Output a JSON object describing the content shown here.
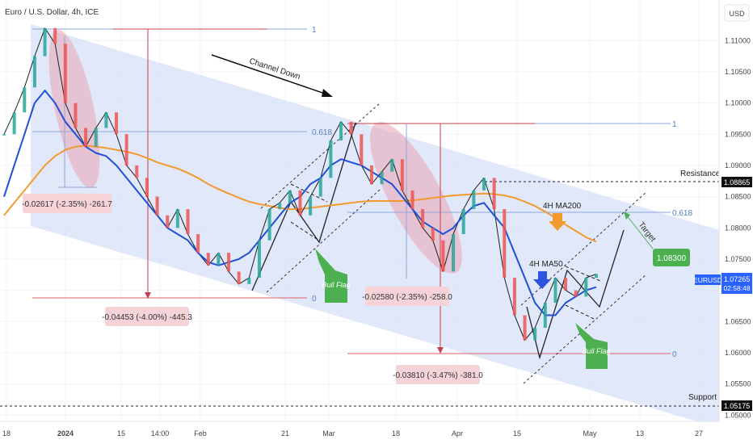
{
  "chart_data": {
    "type": "line",
    "title": "Euro / U.S. Dollar, 4h, ICE",
    "currency": "USD",
    "symbol": "EURUSD",
    "last_price": "1.07265",
    "countdown": "02:58:48",
    "ylim": [
      1.049,
      1.1165
    ],
    "y_ticks": [
      "1.11000",
      "1.10500",
      "1.10000",
      "1.09500",
      "1.09000",
      "1.08500",
      "1.08000",
      "1.07500",
      "1.07000",
      "1.06500",
      "1.06000",
      "1.05500",
      "1.05000"
    ],
    "x_ticks": [
      "18",
      "2024",
      "15",
      "14:00",
      "Feb",
      "21",
      "Mar",
      "18",
      "Apr",
      "15",
      "May",
      "13",
      "27"
    ],
    "series": [
      {
        "values": [
          1.095,
          1.0985,
          1.1025,
          1.1075,
          1.112,
          1.1095,
          1.1,
          1.096,
          1.093,
          1.096,
          1.0985,
          1.095,
          1.09,
          1.088,
          1.085,
          1.082,
          1.08,
          1.083,
          1.079,
          1.076,
          1.074,
          1.076,
          1.073,
          1.071,
          1.072,
          1.078,
          1.083,
          1.084,
          1.086,
          1.082,
          1.085,
          1.088,
          1.094,
          1.097,
          1.095,
          1.09,
          1.087,
          1.089,
          1.091,
          1.086,
          1.083,
          1.08,
          1.078,
          1.073,
          1.079,
          1.083,
          1.086,
          1.088,
          1.083,
          1.072,
          1.066,
          1.062,
          1.064,
          1.068,
          1.072,
          1.07,
          1.069,
          1.072,
          1.0726
        ]
      },
      {
        "name": "4H MA50",
        "values": [
          1.085,
          1.09,
          1.095,
          1.1,
          1.102,
          1.1,
          1.097,
          1.095,
          1.093,
          1.092,
          1.0915,
          1.09,
          1.088,
          1.086,
          1.084,
          1.082,
          1.08,
          1.079,
          1.078,
          1.076,
          1.0745,
          1.074,
          1.0745,
          1.075,
          1.076,
          1.078,
          1.08,
          1.082,
          1.084,
          1.085,
          1.087,
          1.088,
          1.09,
          1.091,
          1.0905,
          1.09,
          1.089,
          1.088,
          1.087,
          1.085,
          1.083,
          1.081,
          1.08,
          1.079,
          1.08,
          1.082,
          1.0835,
          1.084,
          1.082,
          1.08,
          1.076,
          1.072,
          1.068,
          1.066,
          1.066,
          1.068,
          1.069,
          1.07,
          1.0705
        ]
      },
      {
        "name": "4H MA200",
        "values": [
          1.082,
          1.084,
          1.086,
          1.088,
          1.09,
          1.0915,
          1.0925,
          1.093,
          1.0932,
          1.093,
          1.0928,
          1.0925,
          1.0922,
          1.0918,
          1.0912,
          1.0905,
          1.09,
          1.0895,
          1.0888,
          1.088,
          1.087,
          1.0862,
          1.0855,
          1.0848,
          1.0842,
          1.0838,
          1.0835,
          1.0832,
          1.083,
          1.083,
          1.0832,
          1.0834,
          1.0836,
          1.0838,
          1.084,
          1.0842,
          1.0843,
          1.0843,
          1.0843,
          1.0843,
          1.0844,
          1.0846,
          1.0848,
          1.085,
          1.0852,
          1.0853,
          1.0854,
          1.0855,
          1.0854,
          1.0852,
          1.0848,
          1.0842,
          1.0835,
          1.0826,
          1.0816,
          1.0805,
          1.0795,
          1.0785,
          1.0778
        ]
      }
    ],
    "annotations": {
      "channel": "Channel Down",
      "resistance_label": "Resistance 1",
      "resistance_value": "1.08865",
      "support_label": "Support 1",
      "support_value": "1.05175",
      "target_label": "Target",
      "target_value": "1.08300",
      "ma200_label": "4H MA200",
      "ma50_label": "4H MA50",
      "bull_flag_1": "Bull Flag",
      "bull_flag_2": "Bull Flag",
      "drop_1": "-0.02617 (-2.35%) -261.7",
      "drop_2": "-0.04453 (-4.00%) -445.3",
      "drop_3": "-0.02580 (-2.35%) -258.0",
      "drop_4": "-0.03810 (-3.47%) -381.0",
      "fib_a_1": "1",
      "fib_a_0618": "0.618",
      "fib_a_0": "0",
      "fib_b_1": "1",
      "fib_b_0618": "0.618",
      "fib_b_0": "0"
    },
    "colors": {
      "price": "#1f1f1f",
      "ma50": "#1f4fd6",
      "ma200": "#f39a2e",
      "channel": "#c9d6f5",
      "bear_zone": "#e8aab9",
      "bull_flag": "#4caf50",
      "target_box": "#4caf50",
      "drop_box": "#f5d3d6"
    }
  }
}
